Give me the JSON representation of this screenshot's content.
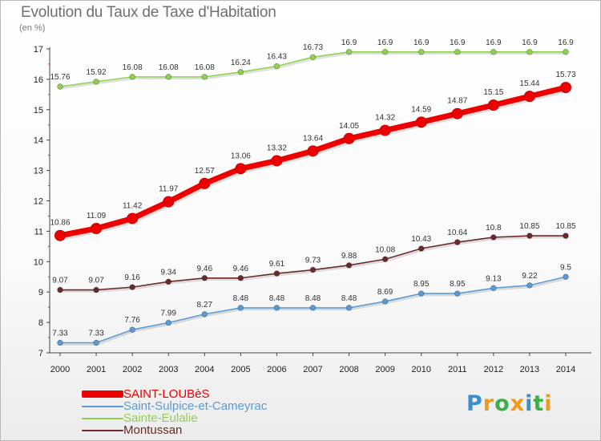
{
  "title": "Evolution du Taux de Taxe d'Habitation",
  "subtitle": "(en %)",
  "brand": {
    "letters": [
      "P",
      "r",
      "o",
      "x",
      "i",
      "t",
      "i"
    ],
    "colors": [
      "#3a8fd0",
      "#f09a1c",
      "#3fae49",
      "#f09a1c",
      "#3a8fd0",
      "#3fae49",
      "#f09a1c"
    ]
  },
  "chart_data": {
    "type": "line",
    "title": "Evolution du Taux de Taxe d'Habitation",
    "ylabel": "(en %)",
    "xlabel": "",
    "x": [
      "2000",
      "2001",
      "2002",
      "2003",
      "2004",
      "2005",
      "2006",
      "2007",
      "2008",
      "2009",
      "2010",
      "2011",
      "2012",
      "2013",
      "2014"
    ],
    "ylim": [
      7,
      17
    ],
    "yticks": [
      7,
      8,
      9,
      10,
      11,
      12,
      13,
      14,
      15,
      16,
      17
    ],
    "grid": false,
    "legend": "bottom-left",
    "series": [
      {
        "name": "SAINT-LOUBèS",
        "color": "#ee0000",
        "values": [
          10.86,
          11.09,
          11.42,
          11.97,
          12.57,
          13.06,
          13.32,
          13.64,
          14.05,
          14.32,
          14.59,
          14.87,
          15.15,
          15.44,
          15.73
        ],
        "labels": [
          "10.86",
          "11.09",
          "11.42",
          "11.97",
          "12.57",
          "13.06",
          "13.32",
          "13.64",
          "14.05",
          "14.32",
          "14.59",
          "14.87",
          "15.15",
          "15.44",
          "15.73"
        ]
      },
      {
        "name": "Saint-Sulpice-et-Cameyrac",
        "color": "#5b9bd5",
        "values": [
          7.33,
          7.33,
          7.76,
          7.99,
          8.27,
          8.48,
          8.48,
          8.48,
          8.48,
          8.69,
          8.95,
          8.95,
          9.13,
          9.22,
          9.5
        ],
        "labels": [
          "7.33",
          "7.33",
          "7.76",
          "7.99",
          "8.27",
          "8.48",
          "8.48",
          "8.48",
          "8.48",
          "8.69",
          "8.95",
          "8.95",
          "9.13",
          "9.22",
          "9.5"
        ]
      },
      {
        "name": "Sainte-Eulalie",
        "color": "#8fd14f",
        "values": [
          15.76,
          15.92,
          16.08,
          16.08,
          16.08,
          16.24,
          16.43,
          16.73,
          16.9,
          16.9,
          16.9,
          16.9,
          16.9,
          16.9,
          16.9
        ],
        "labels": [
          "15.76",
          "15.92",
          "16.08",
          "16.08",
          "16.08",
          "16.24",
          "16.43",
          "16.73",
          "16.9",
          "16.9",
          "16.9",
          "16.9",
          "16.9",
          "16.9",
          "16.9"
        ]
      },
      {
        "name": "Montussan",
        "color": "#6b2a2a",
        "values": [
          9.07,
          9.07,
          9.16,
          9.34,
          9.46,
          9.46,
          9.61,
          9.73,
          9.88,
          10.08,
          10.43,
          10.64,
          10.8,
          10.85,
          10.85
        ],
        "labels": [
          "9.07",
          "9.07",
          "9.16",
          "9.34",
          "9.46",
          "9.46",
          "9.61",
          "9.73",
          "9.88",
          "10.08",
          "10.43",
          "10.64",
          "10.8",
          "10.85",
          "10.85"
        ]
      }
    ]
  }
}
